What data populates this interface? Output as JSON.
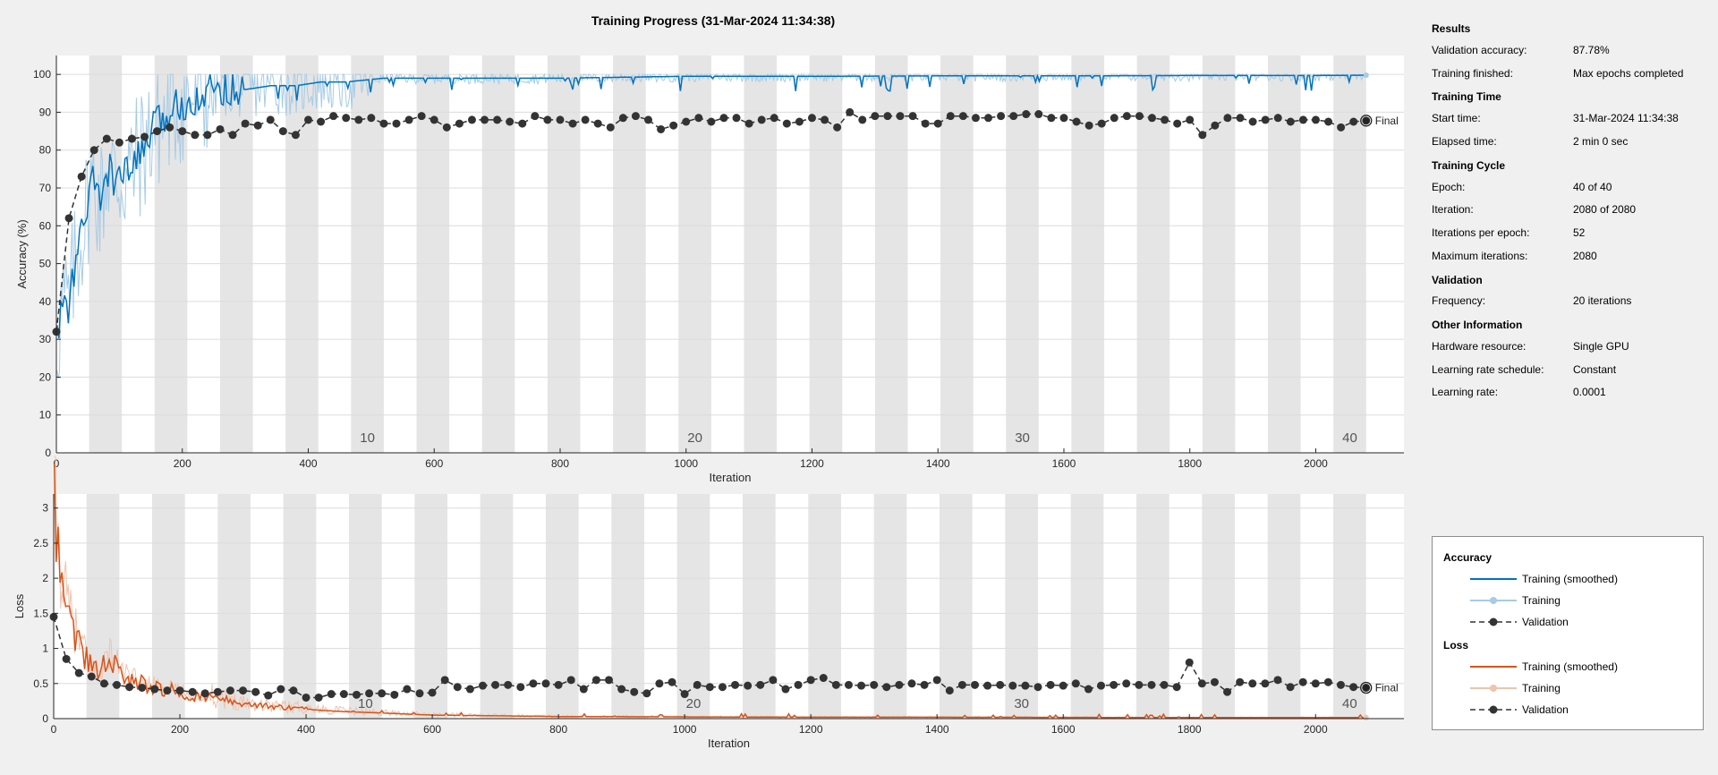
{
  "title": "Training Progress (31-Mar-2024 11:34:38)",
  "info": {
    "sections": [
      {
        "heading": "Results",
        "rows": [
          {
            "key": "Validation accuracy:",
            "value": "87.78%"
          },
          {
            "key": "Training finished:",
            "value": "Max epochs completed"
          }
        ]
      },
      {
        "heading": "Training Time",
        "rows": [
          {
            "key": "Start time:",
            "value": "31-Mar-2024 11:34:38"
          },
          {
            "key": "Elapsed time:",
            "value": "2 min 0 sec"
          }
        ]
      },
      {
        "heading": "Training Cycle",
        "rows": [
          {
            "key": "Epoch:",
            "value": "40 of 40"
          },
          {
            "key": "Iteration:",
            "value": "2080 of 2080"
          },
          {
            "key": "Iterations per epoch:",
            "value": "52"
          },
          {
            "key": "Maximum iterations:",
            "value": "2080"
          }
        ]
      },
      {
        "heading": "Validation",
        "rows": [
          {
            "key": "Frequency:",
            "value": "20 iterations"
          }
        ]
      },
      {
        "heading": "Other Information",
        "rows": [
          {
            "key": "Hardware resource:",
            "value": "Single GPU"
          },
          {
            "key": "Learning rate schedule:",
            "value": "Constant"
          },
          {
            "key": "Learning rate:",
            "value": "0.0001"
          }
        ]
      }
    ]
  },
  "legend": {
    "accuracy_heading": "Accuracy",
    "loss_heading": "Loss",
    "training_smoothed": "Training (smoothed)",
    "training": "Training",
    "validation": "Validation"
  },
  "colors": {
    "acc_smoothed": "#0072BD",
    "acc_raw": "#A6CBE6",
    "loss_smoothed": "#D95319",
    "loss_raw": "#F0C3AC",
    "validation": "#333333",
    "epoch_shade": "#e5e5e5",
    "grid": "#dcdcdc"
  },
  "chart_data": [
    {
      "type": "line",
      "name": "accuracy",
      "xlabel": "Iteration",
      "ylabel": "Accuracy (%)",
      "xlim": [
        0,
        2140
      ],
      "ylim": [
        0,
        105
      ],
      "xticks": [
        0,
        200,
        400,
        600,
        800,
        1000,
        1200,
        1400,
        1600,
        1800,
        2000
      ],
      "yticks": [
        0,
        10,
        20,
        30,
        40,
        50,
        60,
        70,
        80,
        90,
        100
      ],
      "grid": true,
      "iterations_per_epoch": 52,
      "epoch_labels": [
        10,
        20,
        30,
        40
      ],
      "final_label": "Final",
      "training_smoothed": {
        "x": [
          1,
          10,
          20,
          30,
          40,
          52,
          60,
          70,
          80,
          90,
          104,
          120,
          140,
          156,
          170,
          190,
          208,
          230,
          260,
          300,
          340,
          380,
          420,
          460,
          520,
          600,
          700,
          800,
          1000,
          1200,
          1400,
          1600,
          1800,
          2000,
          2080
        ],
        "y": [
          30,
          40,
          38,
          50,
          58,
          68,
          72,
          66,
          75,
          73,
          72,
          75,
          81,
          86,
          88,
          92,
          93,
          95,
          97,
          96,
          97,
          97,
          98,
          98,
          99,
          99,
          99,
          99,
          99.5,
          99.5,
          99.6,
          99.6,
          99.7,
          99.7,
          99.8
        ]
      },
      "validation": {
        "x": [
          0,
          20,
          40,
          60,
          80,
          100,
          120,
          140,
          160,
          180,
          200,
          220,
          240,
          260,
          280,
          300,
          320,
          340,
          360,
          380,
          400,
          420,
          440,
          460,
          480,
          500,
          520,
          540,
          560,
          580,
          600,
          620,
          640,
          660,
          680,
          700,
          720,
          740,
          760,
          780,
          800,
          820,
          840,
          860,
          880,
          900,
          920,
          940,
          960,
          980,
          1000,
          1020,
          1040,
          1060,
          1080,
          1100,
          1120,
          1140,
          1160,
          1180,
          1200,
          1220,
          1240,
          1260,
          1280,
          1300,
          1320,
          1340,
          1360,
          1380,
          1400,
          1420,
          1440,
          1460,
          1480,
          1500,
          1520,
          1540,
          1560,
          1580,
          1600,
          1620,
          1640,
          1660,
          1680,
          1700,
          1720,
          1740,
          1760,
          1780,
          1800,
          1820,
          1840,
          1860,
          1880,
          1900,
          1920,
          1940,
          1960,
          1980,
          2000,
          2020,
          2040,
          2060,
          2080
        ],
        "y": [
          32,
          62,
          73,
          80,
          83,
          82,
          83,
          83.5,
          85,
          86,
          85,
          84,
          84,
          85.5,
          84,
          87,
          86.5,
          88,
          85,
          84,
          88,
          87.5,
          89,
          88.5,
          88,
          88.5,
          87,
          87,
          88,
          89,
          88,
          86,
          87,
          88,
          88,
          88,
          87.5,
          87,
          89,
          88,
          88,
          87,
          88,
          87,
          86,
          88.5,
          89,
          88,
          85.5,
          86.5,
          87.5,
          88.5,
          87.5,
          88.5,
          88.5,
          87,
          88,
          88.5,
          87,
          87.5,
          88.5,
          88,
          86,
          90,
          88,
          89,
          89,
          89,
          89,
          87,
          87,
          89,
          89,
          88.5,
          88.5,
          89,
          89,
          89.5,
          89.5,
          88.5,
          88.5,
          87.5,
          86.5,
          87,
          88.5,
          89,
          89,
          88.5,
          88,
          87,
          88,
          84,
          86.5,
          88.5,
          88.5,
          87.5,
          88,
          88.5,
          87.5,
          88,
          88,
          87.5,
          86,
          87.5,
          87.78
        ]
      }
    },
    {
      "type": "line",
      "name": "loss",
      "xlabel": "Iteration",
      "ylabel": "Loss",
      "xlim": [
        0,
        2140
      ],
      "ylim": [
        0,
        3.2
      ],
      "xticks": [
        0,
        200,
        400,
        600,
        800,
        1000,
        1200,
        1400,
        1600,
        1800,
        2000
      ],
      "yticks": [
        0,
        0.5,
        1,
        1.5,
        2,
        2.5,
        3
      ],
      "ytick_labels": [
        "0",
        "0.5",
        "1",
        "1.5",
        "2",
        "2.5",
        "3"
      ],
      "grid": true,
      "iterations_per_epoch": 52,
      "epoch_labels": [
        10,
        20,
        30,
        40
      ],
      "final_label": "Final",
      "training_smoothed": {
        "x": [
          1,
          5,
          10,
          20,
          30,
          40,
          52,
          60,
          70,
          80,
          90,
          104,
          120,
          140,
          156,
          180,
          208,
          240,
          260,
          300,
          340,
          380,
          420,
          460,
          520,
          600,
          700,
          800,
          1000,
          1200,
          1400,
          1600,
          1800,
          2000,
          2080
        ],
        "y": [
          3.0,
          2.5,
          2.1,
          1.6,
          1.3,
          1.05,
          0.85,
          0.7,
          0.65,
          0.75,
          0.9,
          0.7,
          0.55,
          0.5,
          0.45,
          0.42,
          0.35,
          0.3,
          0.28,
          0.22,
          0.18,
          0.15,
          0.12,
          0.1,
          0.08,
          0.05,
          0.04,
          0.03,
          0.025,
          0.02,
          0.02,
          0.018,
          0.015,
          0.015,
          0.015
        ]
      },
      "validation": {
        "x": [
          0,
          20,
          40,
          60,
          80,
          100,
          120,
          140,
          160,
          180,
          200,
          220,
          240,
          260,
          280,
          300,
          320,
          340,
          360,
          380,
          400,
          420,
          440,
          460,
          480,
          500,
          520,
          540,
          560,
          580,
          600,
          620,
          640,
          660,
          680,
          700,
          720,
          740,
          760,
          780,
          800,
          820,
          840,
          860,
          880,
          900,
          920,
          940,
          960,
          980,
          1000,
          1020,
          1040,
          1060,
          1080,
          1100,
          1120,
          1140,
          1160,
          1180,
          1200,
          1220,
          1240,
          1260,
          1280,
          1300,
          1320,
          1340,
          1360,
          1380,
          1400,
          1420,
          1440,
          1460,
          1480,
          1500,
          1520,
          1540,
          1560,
          1580,
          1600,
          1620,
          1640,
          1660,
          1680,
          1700,
          1720,
          1740,
          1760,
          1780,
          1800,
          1820,
          1840,
          1860,
          1880,
          1900,
          1920,
          1940,
          1960,
          1980,
          2000,
          2020,
          2040,
          2060,
          2080
        ],
        "y": [
          1.45,
          0.85,
          0.65,
          0.6,
          0.5,
          0.48,
          0.45,
          0.44,
          0.42,
          0.4,
          0.4,
          0.38,
          0.36,
          0.38,
          0.4,
          0.4,
          0.38,
          0.33,
          0.42,
          0.4,
          0.3,
          0.3,
          0.35,
          0.35,
          0.34,
          0.36,
          0.36,
          0.34,
          0.42,
          0.36,
          0.37,
          0.55,
          0.45,
          0.42,
          0.47,
          0.48,
          0.48,
          0.45,
          0.5,
          0.5,
          0.48,
          0.55,
          0.42,
          0.55,
          0.55,
          0.42,
          0.38,
          0.36,
          0.5,
          0.52,
          0.35,
          0.48,
          0.45,
          0.45,
          0.48,
          0.47,
          0.48,
          0.55,
          0.42,
          0.48,
          0.55,
          0.58,
          0.48,
          0.48,
          0.47,
          0.48,
          0.45,
          0.48,
          0.5,
          0.48,
          0.55,
          0.4,
          0.48,
          0.48,
          0.47,
          0.48,
          0.47,
          0.47,
          0.45,
          0.48,
          0.47,
          0.5,
          0.42,
          0.47,
          0.48,
          0.5,
          0.48,
          0.48,
          0.48,
          0.45,
          0.8,
          0.5,
          0.52,
          0.38,
          0.52,
          0.5,
          0.5,
          0.55,
          0.45,
          0.52,
          0.5,
          0.52,
          0.48,
          0.45,
          0.44
        ]
      }
    }
  ]
}
